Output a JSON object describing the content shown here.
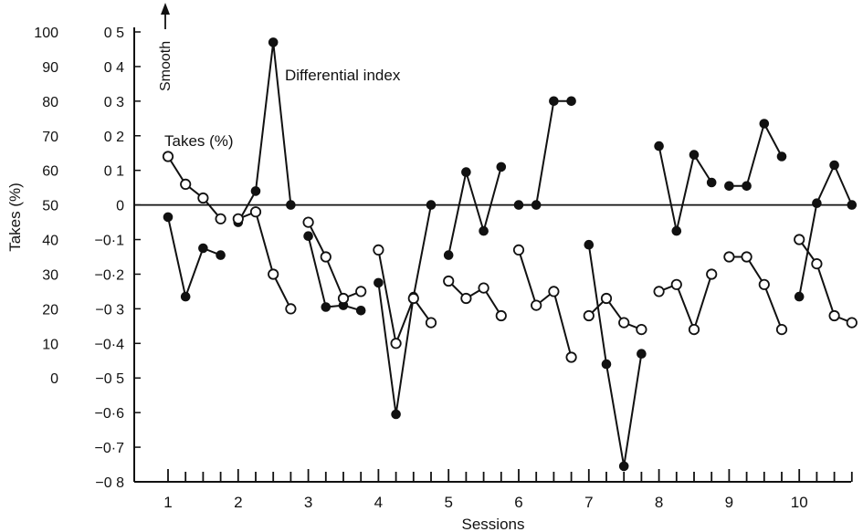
{
  "chart_data": {
    "type": "line",
    "xlabel": "Sessions",
    "sessions": [
      "1",
      "2",
      "3",
      "4",
      "5",
      "6",
      "7",
      "8",
      "9",
      "10"
    ],
    "left_axis": {
      "label": "Takes (%)",
      "ticks": [
        "100",
        "90",
        "80",
        "70",
        "60",
        "50",
        "40",
        "30",
        "20",
        "10",
        "0"
      ]
    },
    "right_axis": {
      "ticks": [
        "0 5",
        "0 4",
        "0 3",
        "0 2",
        "0 1",
        "0",
        "−0·1",
        "−0·2",
        "−0 3",
        "−0·4",
        "−0 5",
        "−0·6",
        "−0·7",
        "−0 8"
      ],
      "ylim": [
        -0.8,
        0.5
      ]
    },
    "reference_line_y": 0,
    "annotations": {
      "smooth": "Smooth",
      "di_label": "Differential index",
      "takes_label": "Takes (%)"
    },
    "series": [
      {
        "name": "Differential index",
        "marker": "filled",
        "axis": "right",
        "segments": [
          [
            [
              1.0,
              -0.035
            ],
            [
              1.25,
              -0.265
            ],
            [
              1.5,
              -0.125
            ],
            [
              1.75,
              -0.145
            ]
          ],
          [
            [
              2.0,
              -0.05
            ],
            [
              2.25,
              0.04
            ],
            [
              2.5,
              0.47
            ],
            [
              2.75,
              0.0
            ]
          ],
          [
            [
              3.0,
              -0.09
            ],
            [
              3.25,
              -0.295
            ],
            [
              3.5,
              -0.29
            ],
            [
              3.75,
              -0.305
            ]
          ],
          [
            [
              4.0,
              -0.225
            ],
            [
              4.25,
              -0.605
            ],
            [
              4.5,
              -0.265
            ],
            [
              4.75,
              0.0
            ]
          ],
          [
            [
              5.0,
              -0.145
            ],
            [
              5.25,
              0.095
            ],
            [
              5.5,
              -0.075
            ],
            [
              5.75,
              0.11
            ]
          ],
          [
            [
              6.0,
              0.0
            ],
            [
              6.25,
              0.0
            ],
            [
              6.5,
              0.3
            ],
            [
              6.75,
              0.3
            ]
          ],
          [
            [
              7.0,
              -0.115
            ],
            [
              7.25,
              -0.46
            ],
            [
              7.5,
              -0.755
            ],
            [
              7.75,
              -0.43
            ]
          ],
          [
            [
              8.0,
              0.17
            ],
            [
              8.25,
              -0.075
            ],
            [
              8.5,
              0.145
            ],
            [
              8.75,
              0.065
            ]
          ],
          [
            [
              9.0,
              0.055
            ],
            [
              9.25,
              0.055
            ],
            [
              9.5,
              0.235
            ],
            [
              9.75,
              0.14
            ]
          ],
          [
            [
              10.0,
              -0.265
            ],
            [
              10.25,
              0.005
            ],
            [
              10.5,
              0.115
            ],
            [
              10.75,
              0.0
            ]
          ]
        ]
      },
      {
        "name": "Takes (%)",
        "marker": "open",
        "axis": "left",
        "segments": [
          [
            [
              1.0,
              64
            ],
            [
              1.25,
              56
            ],
            [
              1.5,
              52
            ],
            [
              1.75,
              46
            ]
          ],
          [
            [
              2.0,
              46
            ],
            [
              2.25,
              48
            ],
            [
              2.5,
              30
            ],
            [
              2.75,
              20
            ]
          ],
          [
            [
              3.0,
              45
            ],
            [
              3.25,
              35
            ],
            [
              3.5,
              23
            ],
            [
              3.75,
              25
            ]
          ],
          [
            [
              4.0,
              37
            ],
            [
              4.25,
              10
            ],
            [
              4.5,
              23
            ],
            [
              4.75,
              16
            ]
          ],
          [
            [
              5.0,
              28
            ],
            [
              5.25,
              23
            ],
            [
              5.5,
              26
            ],
            [
              5.75,
              18
            ]
          ],
          [
            [
              6.0,
              37
            ],
            [
              6.25,
              21
            ],
            [
              6.5,
              25
            ],
            [
              6.75,
              6
            ]
          ],
          [
            [
              7.0,
              18
            ],
            [
              7.25,
              23
            ],
            [
              7.5,
              16
            ],
            [
              7.75,
              14
            ]
          ],
          [
            [
              8.0,
              25
            ],
            [
              8.25,
              27
            ],
            [
              8.5,
              14
            ],
            [
              8.75,
              30
            ]
          ],
          [
            [
              9.0,
              35
            ],
            [
              9.25,
              35
            ],
            [
              9.5,
              27
            ],
            [
              9.75,
              14
            ]
          ],
          [
            [
              10.0,
              40
            ],
            [
              10.25,
              33
            ],
            [
              10.5,
              18
            ],
            [
              10.75,
              16
            ]
          ]
        ]
      }
    ]
  }
}
